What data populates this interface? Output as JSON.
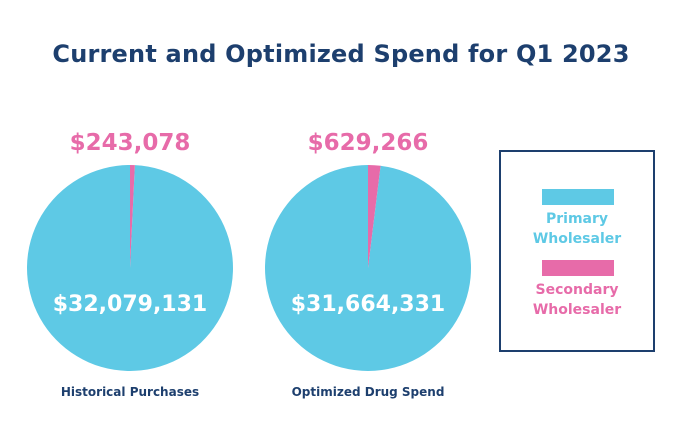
{
  "title": "Current and Optimized Spend for Q1 2023",
  "colors": {
    "primary": "#5ec9e5",
    "secondary": "#e76ba9",
    "title": "#1d3f6e",
    "border": "#1d3f6e"
  },
  "legend": {
    "items": [
      {
        "label": "Primary\nWholesaler",
        "color": "#5ec9e5"
      },
      {
        "label": "Secondary\nWholesaler",
        "color": "#e76ba9"
      }
    ]
  },
  "chart_data": [
    {
      "type": "pie",
      "xlabel": "Historical Purchases",
      "categories": [
        "Primary Wholesaler",
        "Secondary Wholesaler"
      ],
      "values": [
        32079131,
        243078
      ],
      "data_labels": [
        "$32,079,131",
        "$243,078"
      ]
    },
    {
      "type": "pie",
      "xlabel": "Optimized Drug Spend",
      "categories": [
        "Primary Wholesaler",
        "Secondary Wholesaler"
      ],
      "values": [
        31664331,
        629266
      ],
      "data_labels": [
        "$31,664,331",
        "$629,266"
      ]
    }
  ]
}
